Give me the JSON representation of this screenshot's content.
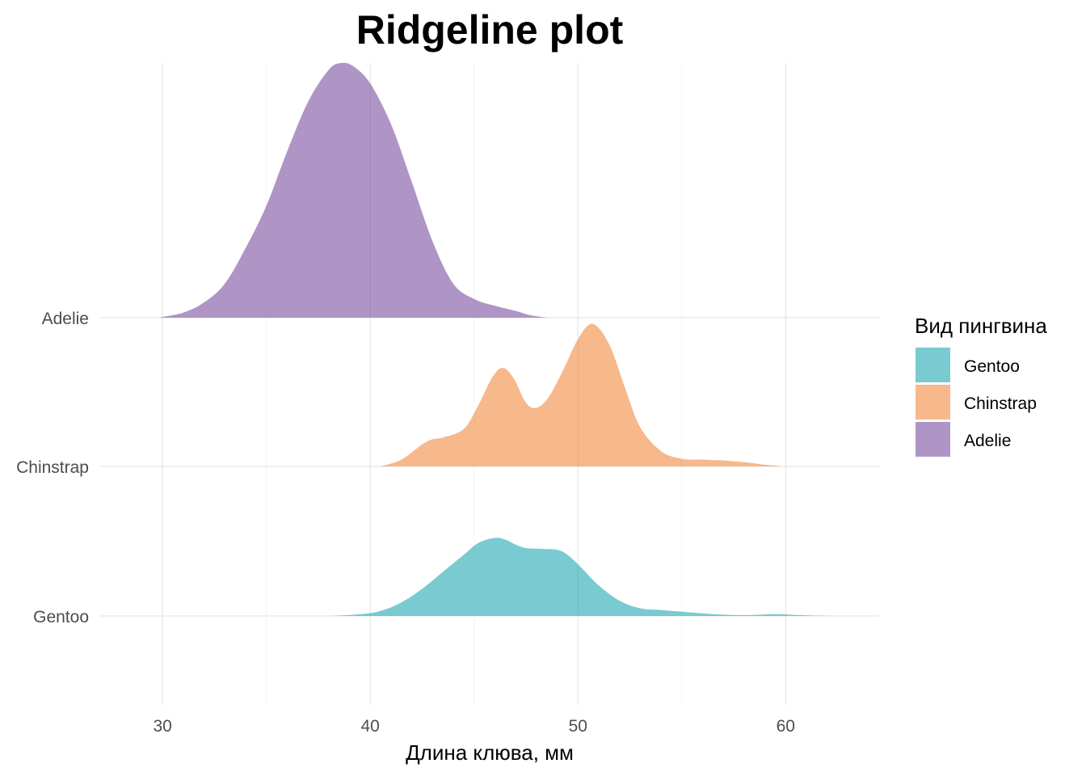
{
  "chart_data": {
    "type": "ridgeline",
    "title": "Ridgeline plot",
    "xlabel": "Длина клюва, мм",
    "ylabel": "",
    "xlim": [
      27,
      64.5
    ],
    "x_ticks": [
      30,
      40,
      50,
      60
    ],
    "x_tick_labels": [
      "30",
      "40",
      "50",
      "60"
    ],
    "categories": [
      "Gentoo",
      "Chinstrap",
      "Adelie"
    ],
    "grid": true,
    "legend": {
      "title": "Вид пингвина",
      "position": "right",
      "entries": [
        "Gentoo",
        "Chinstrap",
        "Adelie"
      ]
    },
    "series": [
      {
        "name": "Gentoo",
        "color": "#1FA8B2",
        "x": [
          38.2,
          39.5,
          40.5,
          41.5,
          42.5,
          43.5,
          44.5,
          45.2,
          46.0,
          46.5,
          47.0,
          47.5,
          48.2,
          49.0,
          49.5,
          50.2,
          51.0,
          52.0,
          53.0,
          54.0,
          55.0,
          56.0,
          57.0,
          57.8,
          58.5,
          59.5,
          60.5,
          61.5,
          62.3
        ],
        "density": [
          0.0,
          0.02,
          0.06,
          0.16,
          0.32,
          0.52,
          0.72,
          0.86,
          0.92,
          0.9,
          0.84,
          0.8,
          0.79,
          0.78,
          0.72,
          0.56,
          0.36,
          0.18,
          0.09,
          0.07,
          0.05,
          0.03,
          0.015,
          0.01,
          0.012,
          0.022,
          0.012,
          0.004,
          0.0
        ]
      },
      {
        "name": "Chinstrap",
        "color": "#F1883F",
        "x": [
          40.5,
          41.5,
          42.5,
          43.0,
          43.5,
          44.5,
          45.2,
          45.9,
          46.4,
          46.9,
          47.5,
          48.0,
          48.6,
          49.3,
          50.0,
          50.7,
          51.5,
          52.3,
          53.0,
          54.0,
          55.0,
          56.0,
          57.0,
          58.0,
          59.0,
          59.9
        ],
        "density": [
          0.0,
          0.08,
          0.26,
          0.32,
          0.34,
          0.44,
          0.72,
          1.06,
          1.16,
          1.04,
          0.75,
          0.69,
          0.82,
          1.14,
          1.5,
          1.68,
          1.44,
          0.9,
          0.46,
          0.18,
          0.09,
          0.08,
          0.07,
          0.05,
          0.02,
          0.0
        ]
      },
      {
        "name": "Adelie",
        "color": "#7A4F9F",
        "x": [
          29.8,
          31.0,
          32.0,
          33.0,
          34.0,
          35.0,
          36.0,
          37.0,
          38.0,
          38.6,
          39.2,
          40.0,
          41.0,
          42.0,
          43.0,
          44.0,
          45.0,
          46.0,
          47.0,
          47.7,
          48.5
        ],
        "density": [
          0.0,
          0.06,
          0.18,
          0.4,
          0.82,
          1.32,
          1.96,
          2.54,
          2.92,
          3.0,
          2.96,
          2.76,
          2.28,
          1.6,
          0.9,
          0.4,
          0.22,
          0.14,
          0.08,
          0.03,
          0.0
        ]
      }
    ]
  }
}
